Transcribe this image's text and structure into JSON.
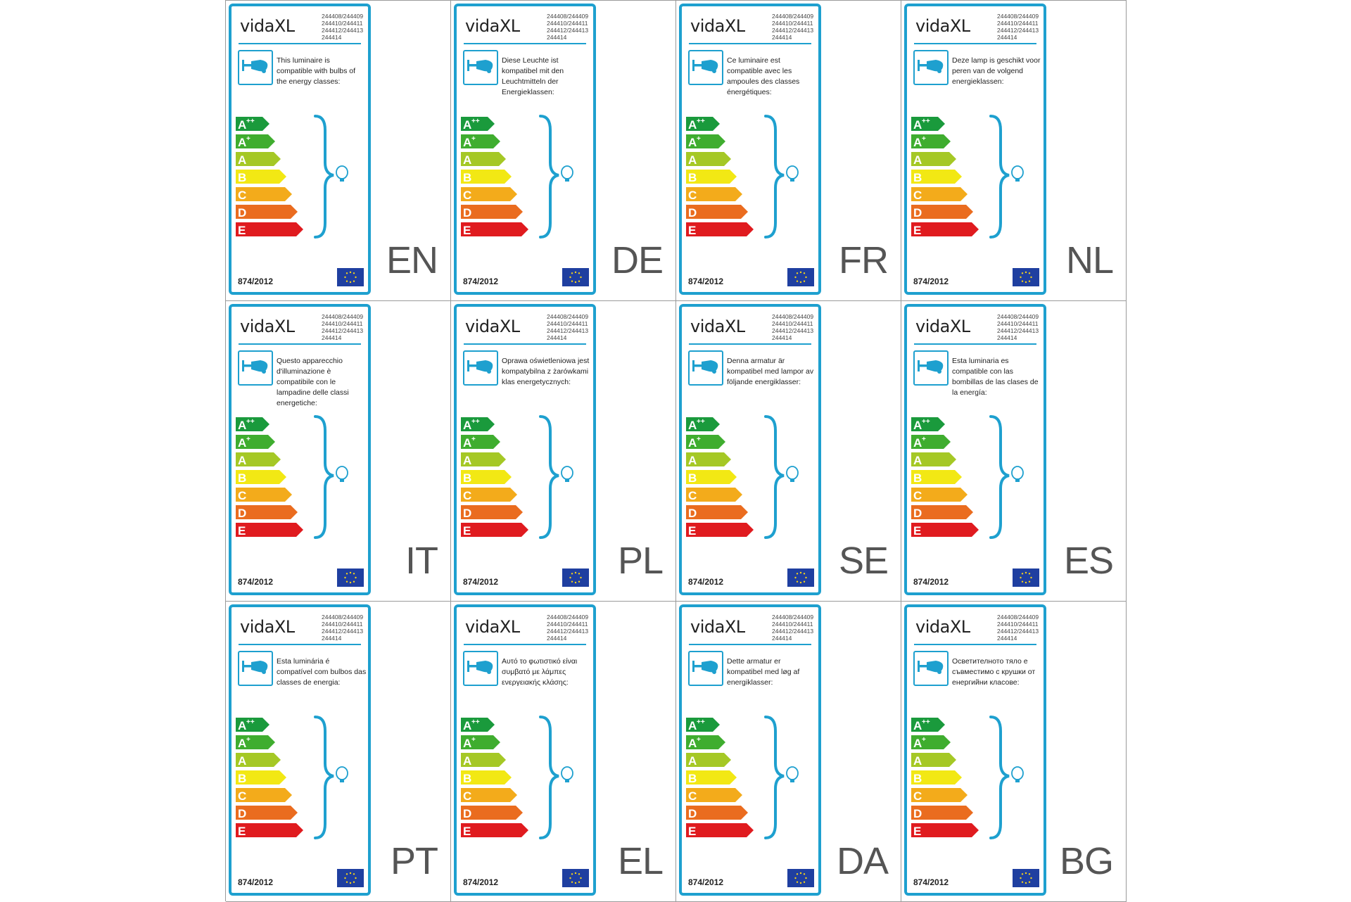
{
  "brand": "vidaXL",
  "codes": [
    "244408/244409",
    "244410/244411",
    "244412/244413",
    "244414"
  ],
  "regulation": "874/2012",
  "energy_classes": [
    {
      "label": "A",
      "sup": "++",
      "color": "#1a9a3c"
    },
    {
      "label": "A",
      "sup": "+",
      "color": "#3fad2f"
    },
    {
      "label": "A",
      "sup": "",
      "color": "#a5c825"
    },
    {
      "label": "B",
      "sup": "",
      "color": "#f2e814"
    },
    {
      "label": "C",
      "sup": "",
      "color": "#f3ab1b"
    },
    {
      "label": "D",
      "sup": "",
      "color": "#ea6c1f"
    },
    {
      "label": "E",
      "sup": "",
      "color": "#e01b1f"
    }
  ],
  "colors": {
    "frame": "#1ea0cf",
    "eu_flag": "#1f3fa0",
    "eu_stars": "#f7d417"
  },
  "icons": {
    "lamp": "lamp-icon",
    "bulb": "bulb-icon",
    "eu_flag": "eu-flag-icon"
  },
  "labels": [
    {
      "lang": "EN",
      "text": "This luminaire is compatible with bulbs of the energy classes:"
    },
    {
      "lang": "DE",
      "text": "Diese Leuchte ist kompatibel mit den Leuchtmitteln der Energieklassen:"
    },
    {
      "lang": "FR",
      "text": "Ce luminaire est compatible avec les ampoules des classes énergétiques:"
    },
    {
      "lang": "NL",
      "text": "Deze lamp is geschikt voor peren van de volgend energieklassen:"
    },
    {
      "lang": "IT",
      "text": "Questo apparecchio d'illuminazione è compatibile con le lampadine delle classi energetiche:"
    },
    {
      "lang": "PL",
      "text": "Oprawa oświetleniowa jest kompatybilna z żarówkami klas energetycznych:"
    },
    {
      "lang": "SE",
      "text": "Denna armatur är kompatibel med lampor av följande energiklasser:"
    },
    {
      "lang": "ES",
      "text": "Esta luminaria es compatible con las bombillas de las clases de la energía:"
    },
    {
      "lang": "PT",
      "text": "Esta luminária é compatível com bulbos das classes de energia:"
    },
    {
      "lang": "EL",
      "text": "Αυτό το φωτιστικό είναι συμβατό με λάμπες ενεργειακής κλάσης:"
    },
    {
      "lang": "DA",
      "text": "Dette armatur er kompatibel med løg af energiklasser:"
    },
    {
      "lang": "BG",
      "text": "Осветителното тяло е съвместимо с крушки от енергийни класове:"
    }
  ]
}
